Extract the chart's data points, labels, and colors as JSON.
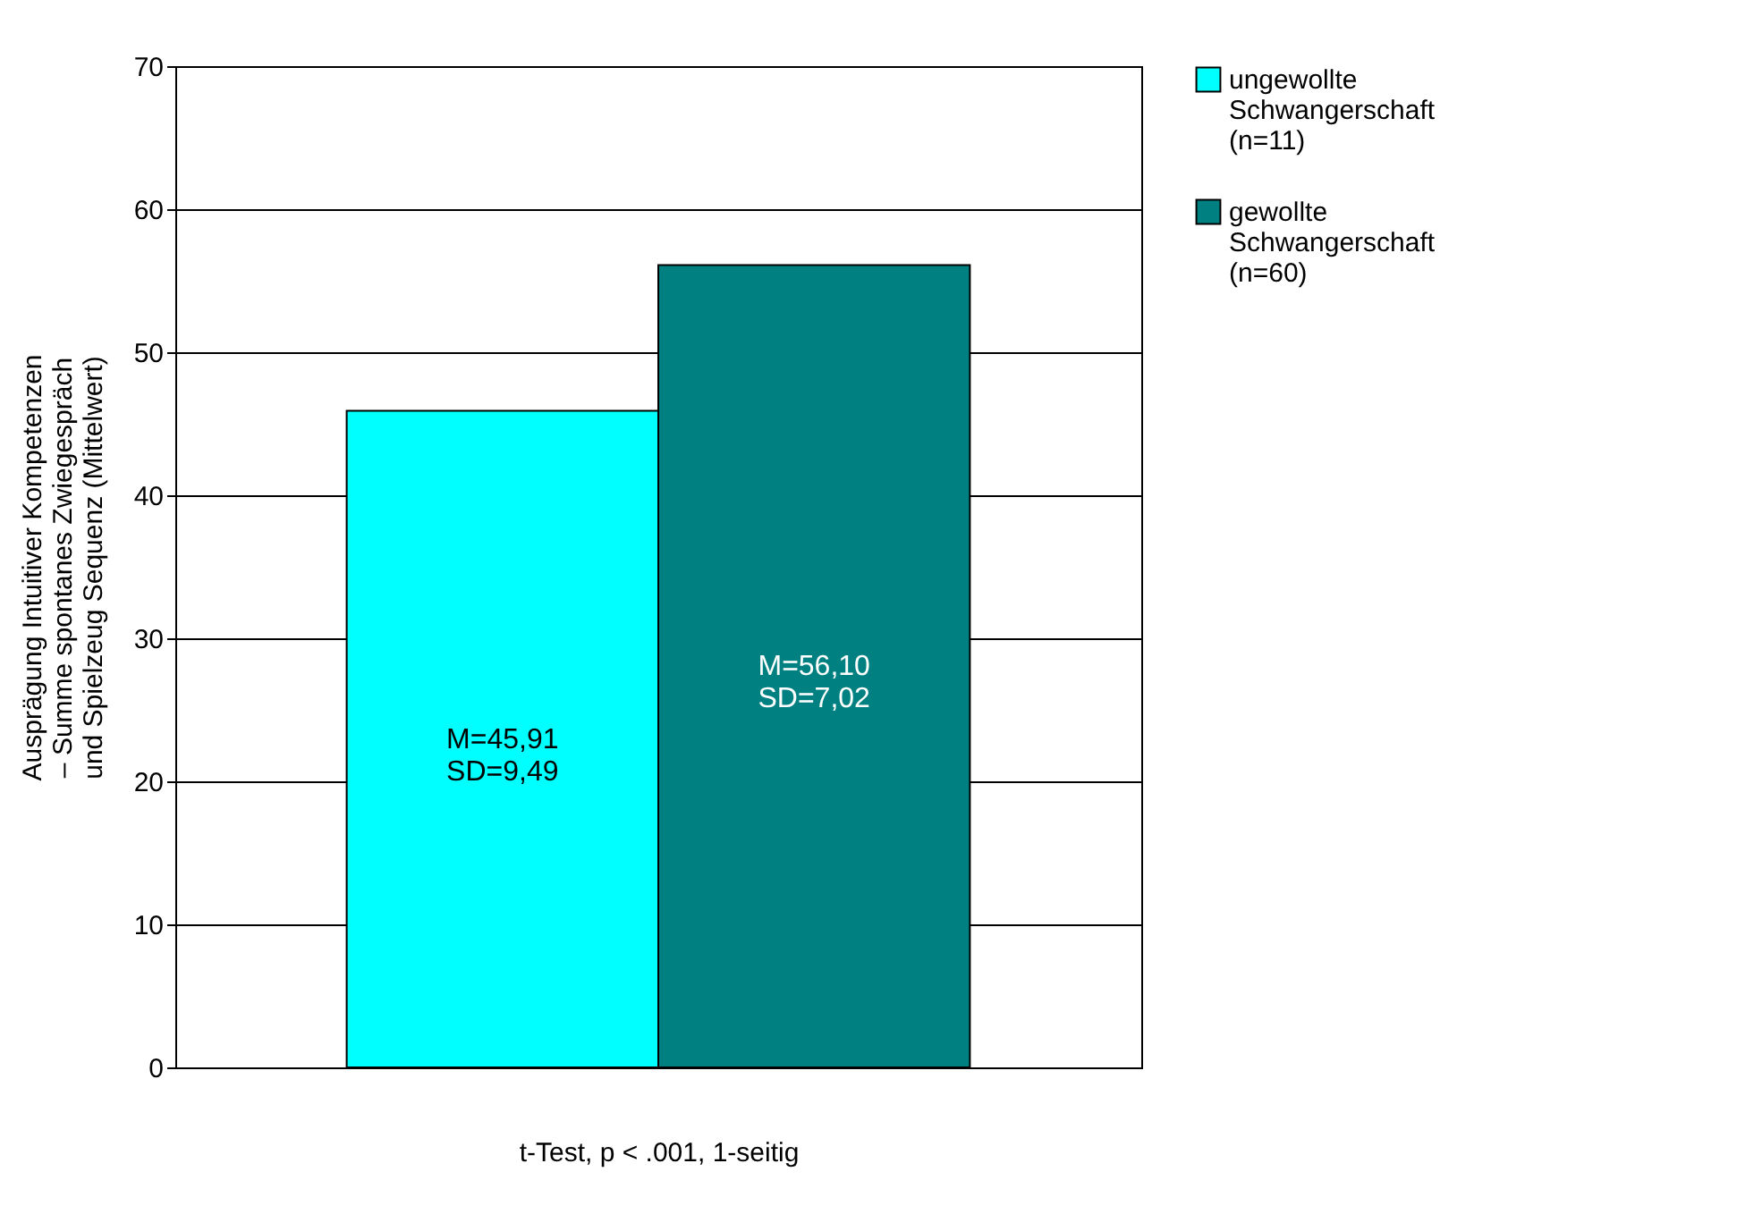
{
  "chart_data": {
    "type": "bar",
    "categories": [
      null
    ],
    "series": [
      {
        "name": "ungewollte Schwangerschaft (n=11)",
        "color": "#00ffff",
        "values": [
          45.91
        ],
        "value_labels": [
          "M=45,91\nSD=9,49"
        ]
      },
      {
        "name": "gewollte Schwangerschaft (n=60)",
        "color": "#008080",
        "values": [
          56.1
        ],
        "value_labels": [
          "M=56,10\nSD=7,02"
        ]
      }
    ],
    "xlabel": "t-Test, p < .001, 1-seitig",
    "ylabel": "Ausprägung Intuitiver Kompetenzen\n– Summe spontanes Zwiegespräch\nund Spielzeug  Sequenz (Mittelwert)",
    "ylim": [
      0,
      70
    ],
    "yticks": [
      0,
      10,
      20,
      30,
      40,
      50,
      60,
      70
    ],
    "grid": "y",
    "legend": "right",
    "tick_labels": "y"
  }
}
